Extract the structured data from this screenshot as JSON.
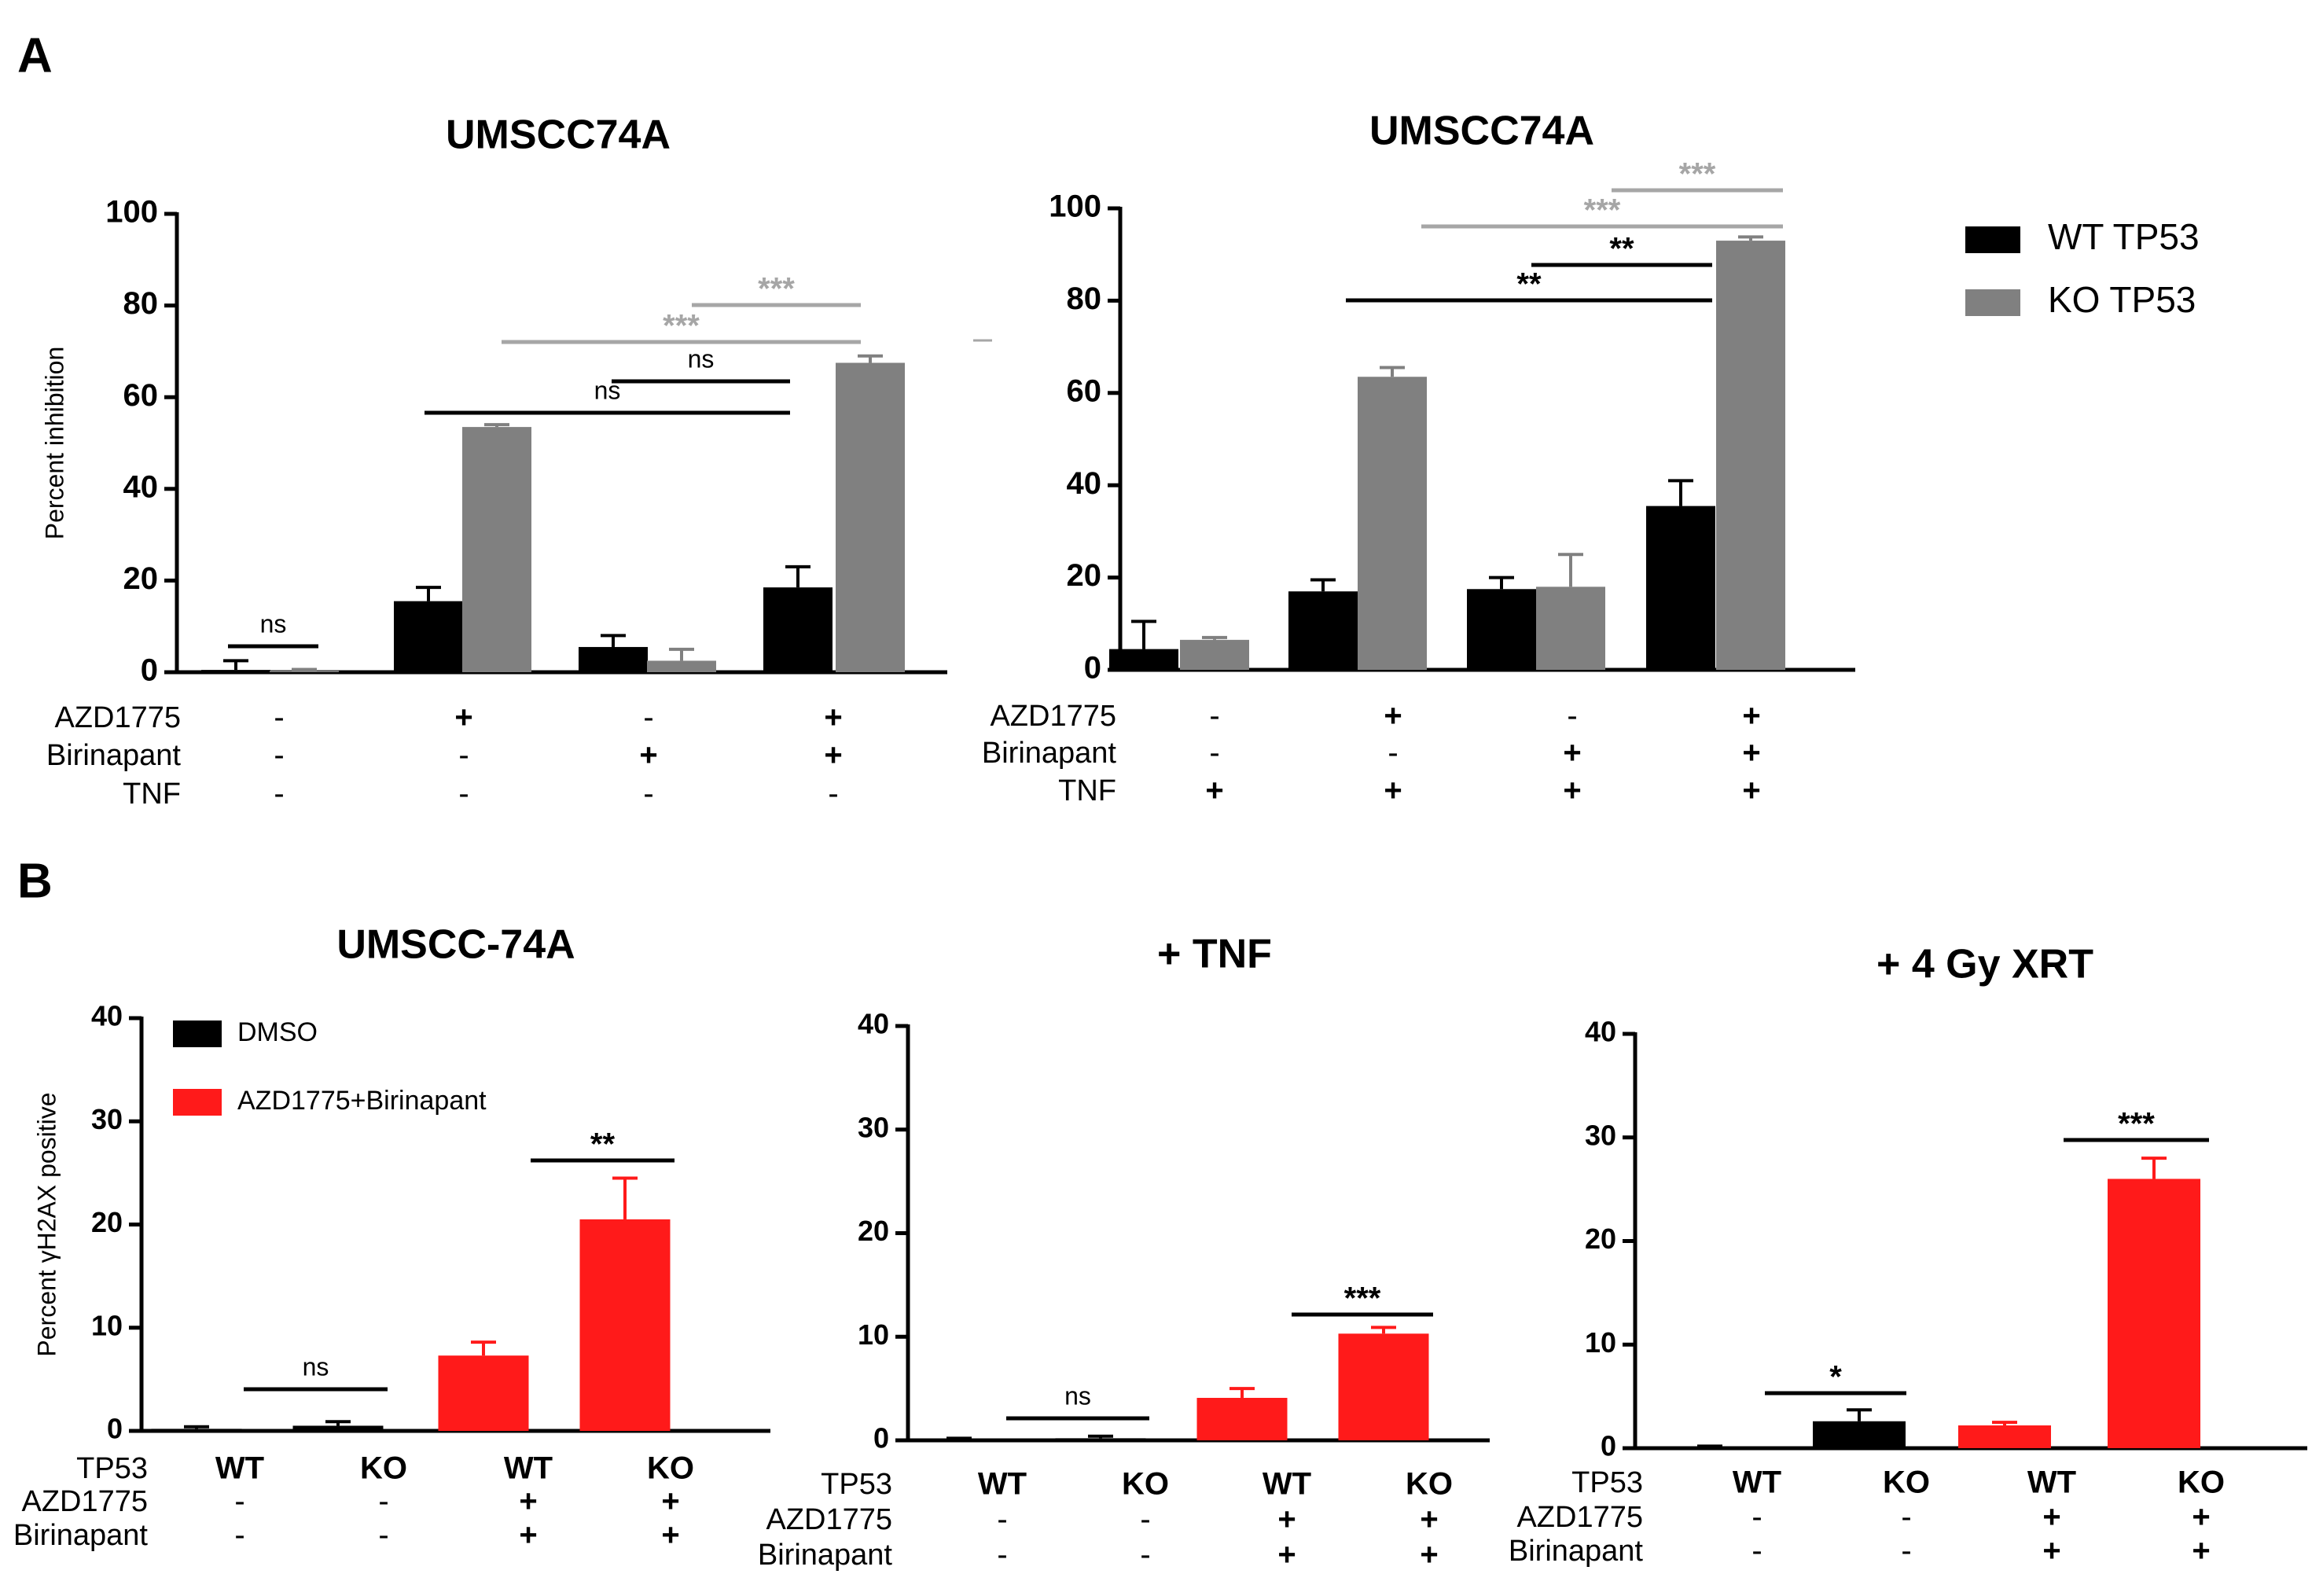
{
  "panels": {
    "A": "A",
    "B": "B"
  },
  "colors": {
    "black": "#000000",
    "grey": "#808080",
    "red": "#ff1a1a",
    "sig_grey": "#a6a6a6"
  },
  "legend_a": [
    {
      "label": "WT  TP53",
      "color": "#000000"
    },
    {
      "label": "KO  TP53",
      "color": "#808080"
    }
  ],
  "legend_b": [
    {
      "label": "DMSO",
      "color": "#000000"
    },
    {
      "label": "AZD1775+Birinapant",
      "color": "#ff1a1a"
    }
  ],
  "chart_data": [
    {
      "id": "A1",
      "type": "bar",
      "title": "UMSCC74A",
      "ylabel": "Percent inhibition",
      "ylim": [
        0,
        100
      ],
      "yticks": [
        0,
        20,
        40,
        60,
        80,
        100
      ],
      "series": [
        {
          "name": "WT TP53",
          "color": "#000000",
          "values": [
            0.5,
            15.5,
            5.5,
            18.5
          ],
          "errors": [
            2,
            3,
            2.5,
            4.5
          ]
        },
        {
          "name": "KO TP53",
          "color": "#808080",
          "values": [
            0.3,
            53.5,
            2.5,
            67.5
          ],
          "errors": [
            0.3,
            0.5,
            2.5,
            1.5
          ]
        }
      ],
      "conditions": [
        {
          "label": "AZD1775",
          "values": [
            "-",
            "+",
            "-",
            "+"
          ]
        },
        {
          "label": "Birinapant",
          "values": [
            "-",
            "-",
            "+",
            "+"
          ]
        },
        {
          "label": "TNF",
          "values": [
            "-",
            "-",
            "-",
            "-"
          ]
        }
      ],
      "significance": [
        {
          "label": "ns",
          "color": "#000000"
        },
        {
          "label": "ns",
          "color": "#000000"
        },
        {
          "label": "ns",
          "color": "#000000"
        },
        {
          "label": "***",
          "color": "#a6a6a6"
        },
        {
          "label": "***",
          "color": "#a6a6a6"
        }
      ]
    },
    {
      "id": "A2",
      "type": "bar",
      "title": "UMSCC74A",
      "ylabel": "",
      "ylim": [
        0,
        100
      ],
      "yticks": [
        0,
        20,
        40,
        60,
        80,
        100
      ],
      "series": [
        {
          "name": "WT TP53",
          "color": "#000000",
          "values": [
            4.5,
            17,
            17.5,
            35.5
          ],
          "errors": [
            6,
            2.5,
            2.5,
            5.5
          ]
        },
        {
          "name": "KO TP53",
          "color": "#808080",
          "values": [
            6.5,
            63.5,
            18,
            93
          ],
          "errors": [
            0.5,
            2,
            7,
            0.8
          ]
        }
      ],
      "conditions": [
        {
          "label": "AZD1775",
          "values": [
            "-",
            "+",
            "-",
            "+"
          ]
        },
        {
          "label": "Birinapant",
          "values": [
            "-",
            "-",
            "+",
            "+"
          ]
        },
        {
          "label": "TNF",
          "values": [
            "+",
            "+",
            "+",
            "+"
          ]
        }
      ],
      "significance": [
        {
          "label": "**",
          "color": "#000000"
        },
        {
          "label": "**",
          "color": "#000000"
        },
        {
          "label": "***",
          "color": "#a6a6a6"
        },
        {
          "label": "***",
          "color": "#a6a6a6"
        }
      ]
    },
    {
      "id": "B1",
      "type": "bar",
      "title": "UMSCC-74A",
      "ylabel": "Percent γH2AX positive",
      "ylim": [
        0,
        40
      ],
      "yticks": [
        0,
        10,
        20,
        30,
        40
      ],
      "categories": [
        "WT",
        "KO",
        "WT",
        "KO"
      ],
      "values": [
        0.2,
        0.5,
        7.3,
        20.5
      ],
      "errors": [
        0.2,
        0.4,
        1.3,
        4.0
      ],
      "colors": [
        "#000000",
        "#000000",
        "#ff1a1a",
        "#ff1a1a"
      ],
      "conditions": [
        {
          "label": "TP53",
          "values": [
            "WT",
            "KO",
            "WT",
            "KO"
          ]
        },
        {
          "label": "AZD1775",
          "values": [
            "-",
            "-",
            "+",
            "+"
          ]
        },
        {
          "label": "Birinapant",
          "values": [
            "-",
            "-",
            "+",
            "+"
          ]
        }
      ],
      "significance": [
        {
          "label": "ns",
          "color": "#000000"
        },
        {
          "label": "**",
          "color": "#000000"
        }
      ]
    },
    {
      "id": "B2",
      "type": "bar",
      "title": "+ TNF",
      "ylabel": "",
      "ylim": [
        0,
        40
      ],
      "yticks": [
        0,
        10,
        20,
        30,
        40
      ],
      "categories": [
        "WT",
        "KO",
        "WT",
        "KO"
      ],
      "values": [
        0.1,
        0.2,
        4.1,
        10.3
      ],
      "errors": [
        0.1,
        0.2,
        0.9,
        0.6
      ],
      "colors": [
        "#000000",
        "#000000",
        "#ff1a1a",
        "#ff1a1a"
      ],
      "conditions": [
        {
          "label": "TP53",
          "values": [
            "WT",
            "KO",
            "WT",
            "KO"
          ]
        },
        {
          "label": "AZD1775",
          "values": [
            "-",
            "-",
            "+",
            "+"
          ]
        },
        {
          "label": "Birinapant",
          "values": [
            "-",
            "-",
            "+",
            "+"
          ]
        }
      ],
      "significance": [
        {
          "label": "ns",
          "color": "#000000"
        },
        {
          "label": "***",
          "color": "#000000"
        }
      ]
    },
    {
      "id": "B3",
      "type": "bar",
      "title": "+ 4 Gy XRT",
      "ylabel": "",
      "ylim": [
        0,
        40
      ],
      "yticks": [
        0,
        10,
        20,
        30,
        40
      ],
      "categories": [
        "WT",
        "KO",
        "WT",
        "KO"
      ],
      "values": [
        0.1,
        2.6,
        2.2,
        26
      ],
      "errors": [
        0.1,
        1.1,
        0.3,
        2.0
      ],
      "colors": [
        "#000000",
        "#000000",
        "#ff1a1a",
        "#ff1a1a"
      ],
      "conditions": [
        {
          "label": "TP53",
          "values": [
            "WT",
            "KO",
            "WT",
            "KO"
          ]
        },
        {
          "label": "AZD1775",
          "values": [
            "-",
            "-",
            "+",
            "+"
          ]
        },
        {
          "label": "Birinapant",
          "values": [
            "-",
            "-",
            "+",
            "+"
          ]
        }
      ],
      "significance": [
        {
          "label": "*",
          "color": "#000000"
        },
        {
          "label": "***",
          "color": "#000000"
        }
      ]
    }
  ]
}
